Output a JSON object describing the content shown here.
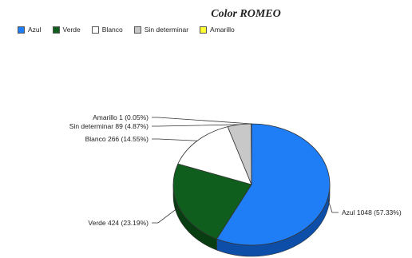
{
  "chart_data": {
    "type": "pie",
    "title": "Color ROMEO",
    "legend_position": "top-left",
    "slices": [
      {
        "name": "Azul",
        "value": 1048,
        "percent": 57.33,
        "label": "Azul 1048 (57.33%)",
        "color": "#1f7ef5",
        "side_color": "#0d4fa8"
      },
      {
        "name": "Verde",
        "value": 424,
        "percent": 23.19,
        "label": "Verde 424 (23.19%)",
        "color": "#0f5e1e",
        "side_color": "#083d12"
      },
      {
        "name": "Blanco",
        "value": 266,
        "percent": 14.55,
        "label": "Blanco 266 (14.55%)",
        "color": "#ffffff",
        "side_color": "#bfbfbf"
      },
      {
        "name": "Sin determinar",
        "value": 89,
        "percent": 4.87,
        "label": "Sin determinar 89 (4.87%)",
        "color": "#c8c8c8",
        "side_color": "#8c8c8c"
      },
      {
        "name": "Amarillo",
        "value": 1,
        "percent": 0.05,
        "label": "Amarillo 1 (0.05%)",
        "color": "#ffff33",
        "side_color": "#b3b300"
      }
    ]
  }
}
